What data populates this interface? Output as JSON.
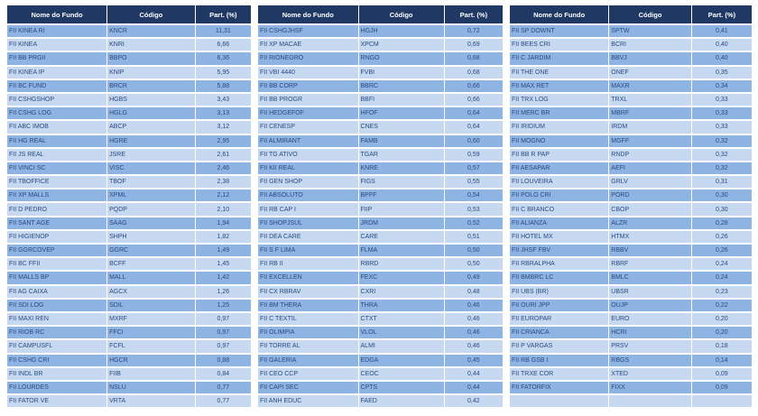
{
  "headers": {
    "name": "Nome do Fundo",
    "code": "Código",
    "part": "Part. (%)"
  },
  "colors": {
    "header_bg": "#1f3864",
    "row_dark": "#8eb4e3",
    "row_light": "#c6d9f1",
    "text": "#2b4a80"
  },
  "tables": [
    {
      "rows": [
        [
          "FII KINEA RI",
          "KNCR",
          "11,31"
        ],
        [
          "FII KINEA",
          "KNRI",
          "6,66"
        ],
        [
          "FII BB PRGII",
          "BBPO",
          "6,36"
        ],
        [
          "FII KINEA IP",
          "KNIP",
          "5,95"
        ],
        [
          "FII BC FUND",
          "BRCR",
          "5,88"
        ],
        [
          "FII CSHGSHOP",
          "HGBS",
          "3,43"
        ],
        [
          "FII CSHG LOG",
          "HGLG",
          "3,13"
        ],
        [
          "FII ABC IMOB",
          "ABCP",
          "3,12"
        ],
        [
          "FII HG REAL",
          "HGRE",
          "2,95"
        ],
        [
          "FII JS REAL",
          "JSRE",
          "2,61"
        ],
        [
          "FII VINCI SC",
          "VISC",
          "2,46"
        ],
        [
          "FII TBOFFICE",
          "TBOF",
          "2,38"
        ],
        [
          "FII XP MALLS",
          "XPML",
          "2,12"
        ],
        [
          "FII D PEDRO",
          "PQDP",
          "2,10"
        ],
        [
          "FII SANT AGE",
          "SAAG",
          "1,94"
        ],
        [
          "FII HIGIENOP",
          "SHPH",
          "1,82"
        ],
        [
          "FII GGRCOVEP",
          "GGRC",
          "1,49"
        ],
        [
          "FII BC FFII",
          "BCFF",
          "1,45"
        ],
        [
          "FII MALLS BP",
          "MALL",
          "1,42"
        ],
        [
          "FII AG CAIXA",
          "AGCX",
          "1,26"
        ],
        [
          "FII SDI LOG",
          "SDIL",
          "1,25"
        ],
        [
          "FII MAXI REN",
          "MXRF",
          "0,97"
        ],
        [
          "FII RIOB RC",
          "FFCI",
          "0,97"
        ],
        [
          "FII CAMPUSFL",
          "FCFL",
          "0,97"
        ],
        [
          "FII CSHG CRI",
          "HGCR",
          "0,88"
        ],
        [
          "FII INDL BR",
          "FIIB",
          "0,84"
        ],
        [
          "FII LOURDES",
          "NSLU",
          "0,77"
        ],
        [
          "FII FATOR VE",
          "VRTA",
          "0,77"
        ]
      ]
    },
    {
      "rows": [
        [
          "FII CSHGJHSF",
          "HGJH",
          "0,72"
        ],
        [
          "FII XP MACAE",
          "XPCM",
          "0,69"
        ],
        [
          "FII RIONEGRO",
          "RNGO",
          "0,68"
        ],
        [
          "FII VBI 4440",
          "FVBI",
          "0,68"
        ],
        [
          "FII BB CORP",
          "BBRC",
          "0,66"
        ],
        [
          "FII BB PROGR",
          "BBFI",
          "0,66"
        ],
        [
          "FII HEDGEFOF",
          "HFOF",
          "0,64"
        ],
        [
          "FII CENESP",
          "CNES",
          "0,64"
        ],
        [
          "FII ALMIRANT",
          "FAMB",
          "0,60"
        ],
        [
          "FII TG ATIVO",
          "TGAR",
          "0,59"
        ],
        [
          "FII KII REAL",
          "KNRE",
          "0,57"
        ],
        [
          "FII GEN SHOP",
          "FIGS",
          "0,55"
        ],
        [
          "FII ABSOLUTO",
          "BPFF",
          "0,54"
        ],
        [
          "FII RB CAP I",
          "FIIP",
          "0,53"
        ],
        [
          "FII SHOPJSUL",
          "JRDM",
          "0,52"
        ],
        [
          "FII DEA CARE",
          "CARE",
          "0,51"
        ],
        [
          "FII S F LIMA",
          "FLMA",
          "0,50"
        ],
        [
          "FII RB II",
          "RBRD",
          "0,50"
        ],
        [
          "FII EXCELLEN",
          "FEXC",
          "0,49"
        ],
        [
          "FII CX RBRAV",
          "CXRI",
          "0,48"
        ],
        [
          "FII BM THERA",
          "THRA",
          "0,46"
        ],
        [
          "FII C TEXTIL",
          "CTXT",
          "0,46"
        ],
        [
          "FII OLIMPIA",
          "VLOL",
          "0,46"
        ],
        [
          "FII TORRE AL",
          "ALMI",
          "0,46"
        ],
        [
          "FII GALERIA",
          "EDGA",
          "0,45"
        ],
        [
          "FII CEO CCP",
          "CEOC",
          "0,44"
        ],
        [
          "FII CAPI SEC",
          "CPTS",
          "0,44"
        ],
        [
          "FII ANH EDUC",
          "FAED",
          "0,42"
        ]
      ]
    },
    {
      "rows": [
        [
          "FII SP DOWNT",
          "SPTW",
          "0,41"
        ],
        [
          "FII BEES CRI",
          "BCRI",
          "0,40"
        ],
        [
          "FII C JARDIM",
          "BBVJ",
          "0,40"
        ],
        [
          "FII THE ONE",
          "ONEF",
          "0,35"
        ],
        [
          "FII MAX RET",
          "MAXR",
          "0,34"
        ],
        [
          "FII TRX LOG",
          "TRXL",
          "0,33"
        ],
        [
          "FII MERC BR",
          "MBRF",
          "0,33"
        ],
        [
          "FII IRIDIUM",
          "IRDM",
          "0,33"
        ],
        [
          "FII MOGNO",
          "MGFF",
          "0,32"
        ],
        [
          "FII BB R PAP",
          "RNDP",
          "0,32"
        ],
        [
          "FII AESAPAR",
          "AEFI",
          "0,32"
        ],
        [
          "FII LOUVEIRA",
          "GRLV",
          "0,31"
        ],
        [
          "FII POLO CRI",
          "PORD",
          "0,30"
        ],
        [
          "FII C BRANCO",
          "CBOP",
          "0,30"
        ],
        [
          "FII ALIANZA",
          "ALZR",
          "0,28"
        ],
        [
          "FII HOTEL MX",
          "HTMX",
          "0,26"
        ],
        [
          "FII JHSF FBV",
          "RBBV",
          "0,26"
        ],
        [
          "FII RBRALPHA",
          "RBRF",
          "0,24"
        ],
        [
          "FII BMBRC LC",
          "BMLC",
          "0,24"
        ],
        [
          "FII UBS (BR)",
          "UBSR",
          "0,23"
        ],
        [
          "FII OURI JPP",
          "OUJP",
          "0,22"
        ],
        [
          "FII EUROPAR",
          "EURO",
          "0,20"
        ],
        [
          "FII CRIANCA",
          "HCRI",
          "0,20"
        ],
        [
          "FII P VARGAS",
          "PRSV",
          "0,18"
        ],
        [
          "FII RB GSB I",
          "RBGS",
          "0,14"
        ],
        [
          "FII TRXE COR",
          "XTED",
          "0,09"
        ],
        [
          "FII FATORFIX",
          "FIXX",
          "0,09"
        ],
        [
          "",
          "",
          ""
        ]
      ]
    }
  ]
}
